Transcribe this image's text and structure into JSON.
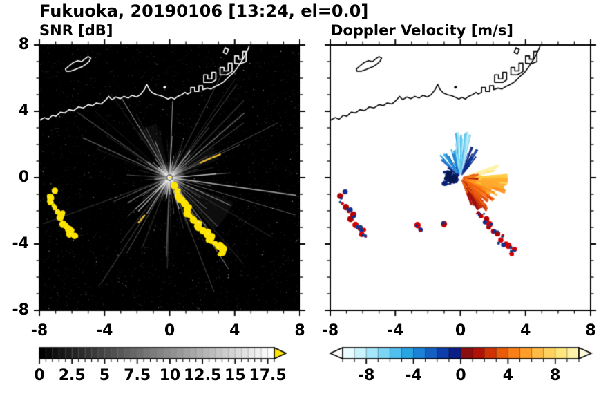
{
  "chart_data": {
    "type": "heatmap",
    "subtype": "dual-panel weather radar PPI",
    "title": "Fukuoka, 20190106 [13:24, el=0.0]",
    "xlim": [
      -8,
      8
    ],
    "ylim": [
      -8,
      8
    ],
    "major_ticks": [
      -8,
      -4,
      0,
      4,
      8
    ],
    "minor_tick_step": 1,
    "x_tick_labels": [
      "-8",
      "-4",
      "0",
      "4",
      "8"
    ],
    "y_tick_labels": [
      "8",
      "4",
      "0",
      "-4",
      "-8"
    ],
    "radar_center": [
      0,
      0
    ],
    "panels": [
      {
        "name": "SNR [dB]",
        "background": "#000000",
        "coastline_color": "#ffffff",
        "colorbar": {
          "range": [
            0,
            18
          ],
          "segments": 36,
          "scale": "grayscale",
          "tick_values": [
            0,
            2.5,
            5,
            7.5,
            10,
            12.5,
            15,
            17.5
          ],
          "tick_labels": [
            "0",
            "2.5",
            "5",
            "7.5",
            "10",
            "12.5",
            "15",
            "17.5"
          ],
          "minor_tick_step": 0.5,
          "over_arrow_color": "#ffe600"
        },
        "texture": {
          "seed": 1106,
          "noise_count": 3200,
          "streak_count": 125,
          "echo_color": "#ffe400",
          "dash_color": "#e6b830",
          "dashes": [
            [
              [
                1.9,
                0.9
              ],
              [
                2.55,
                1.18
              ]
            ],
            [
              [
                2.65,
                1.22
              ],
              [
                3.1,
                1.4
              ]
            ],
            [
              [
                -1.9,
                -2.7
              ],
              [
                -1.55,
                -2.28
              ]
            ]
          ],
          "haze_wedges": [
            {
              "az": -35,
              "halfw": 14,
              "r": 4.2
            },
            {
              "az": -62,
              "halfw": 9,
              "r": 3.0
            },
            {
              "az": 115,
              "halfw": 11,
              "r": 3.4
            },
            {
              "az": 28,
              "halfw": 8,
              "r": 3.2
            }
          ]
        }
      },
      {
        "name": "Doppler Velocity [m/s]",
        "background": "#ffffff",
        "coastline_color": "#000000",
        "colorbar": {
          "range": [
            -10,
            10
          ],
          "tick_values": [
            -8,
            -4,
            0,
            4,
            8
          ],
          "tick_labels": [
            "-8",
            "-4",
            "0",
            "4",
            "8"
          ],
          "minor_tick_step": 1,
          "segment_colors": [
            "#e8fbff",
            "#c9f2fd",
            "#a5e6fa",
            "#7dd5f5",
            "#52c0ee",
            "#2aa5e4",
            "#1b82d6",
            "#145fc2",
            "#0f3dab",
            "#0a1e85",
            "#8c0f0f",
            "#b01205",
            "#cf3305",
            "#e85c0a",
            "#f97f16",
            "#ff9f2a",
            "#ffbb45",
            "#ffd25f",
            "#ffe57e",
            "#fff2a8"
          ],
          "under_arrow_color": "#ffffff",
          "over_arrow_color": "#fffbdc"
        },
        "fans": {
          "seed": 777,
          "approaching": {
            "azimuth_deg": [
              52,
              215
            ],
            "max_range": 2.9,
            "palette": [
              "#bfeef8",
              "#8fdcf4",
              "#54c0ec",
              "#23a2e2",
              "#1b7fd4",
              "#1257bf",
              "#0d379f",
              "#0a2178",
              "#071750"
            ]
          },
          "receding": {
            "azimuth_deg": [
              -68,
              18
            ],
            "max_range": 2.9,
            "palette": [
              "#fff1a8",
              "#ffe066",
              "#ffc93c",
              "#ffab2e",
              "#ff8c1a",
              "#f5690e",
              "#e04a08",
              "#c22a04",
              "#a01010"
            ]
          }
        },
        "speck_colors": [
          "#d40000",
          "#b00000",
          "#0d2f96",
          "#123c8c"
        ],
        "extra_specks": [
          [
            -2.6,
            -2.9
          ],
          [
            -2.45,
            -3.15
          ],
          [
            -1.05,
            -2.85
          ]
        ]
      }
    ],
    "echo_chains": [
      [
        [
          -7.15,
          -0.85
        ],
        [
          -7.35,
          -1.15
        ],
        [
          -7.3,
          -1.5
        ],
        [
          -7.1,
          -1.8
        ],
        [
          -6.85,
          -2.05
        ],
        [
          -6.6,
          -2.2
        ],
        [
          -6.75,
          -2.45
        ]
      ],
      [
        [
          -6.45,
          -2.85
        ],
        [
          -6.2,
          -3.05
        ],
        [
          -5.95,
          -3.2
        ],
        [
          -6.1,
          -3.45
        ],
        [
          -5.8,
          -3.5
        ]
      ],
      [
        [
          0.35,
          -0.55
        ],
        [
          0.55,
          -0.8
        ],
        [
          0.45,
          -1.1
        ],
        [
          0.7,
          -1.35
        ],
        [
          0.95,
          -1.6
        ],
        [
          1.15,
          -1.85
        ],
        [
          1.05,
          -2.1
        ],
        [
          1.3,
          -2.3
        ],
        [
          1.55,
          -2.55
        ],
        [
          1.8,
          -2.75
        ],
        [
          1.7,
          -3.0
        ],
        [
          2.0,
          -3.2
        ],
        [
          2.3,
          -3.35
        ],
        [
          2.55,
          -3.55
        ],
        [
          2.45,
          -3.8
        ],
        [
          2.75,
          -3.95
        ],
        [
          3.0,
          -4.15
        ],
        [
          3.3,
          -4.3
        ],
        [
          3.15,
          -4.55
        ]
      ]
    ],
    "coastline": {
      "mainland": [
        [
          -8.0,
          3.45
        ],
        [
          -7.7,
          3.62
        ],
        [
          -7.45,
          3.52
        ],
        [
          -7.2,
          3.76
        ],
        [
          -6.98,
          3.7
        ],
        [
          -6.7,
          3.95
        ],
        [
          -6.45,
          3.9
        ],
        [
          -6.18,
          4.1
        ],
        [
          -5.9,
          4.04
        ],
        [
          -5.6,
          4.26
        ],
        [
          -5.3,
          4.2
        ],
        [
          -5.0,
          4.4
        ],
        [
          -4.74,
          4.34
        ],
        [
          -4.5,
          4.5
        ],
        [
          -4.2,
          4.44
        ],
        [
          -3.95,
          4.66
        ],
        [
          -3.74,
          4.9
        ],
        [
          -3.54,
          4.7
        ],
        [
          -3.3,
          4.86
        ],
        [
          -3.04,
          4.76
        ],
        [
          -2.8,
          4.9
        ],
        [
          -2.54,
          4.8
        ],
        [
          -2.3,
          4.96
        ],
        [
          -2.04,
          4.86
        ],
        [
          -1.8,
          5.0
        ],
        [
          -1.56,
          5.3
        ],
        [
          -1.4,
          5.62
        ],
        [
          -1.24,
          5.3
        ],
        [
          -1.04,
          5.1
        ],
        [
          -0.8,
          5.0
        ],
        [
          -0.54,
          4.94
        ],
        [
          -0.3,
          4.84
        ],
        [
          -0.1,
          4.74
        ],
        [
          0.1,
          4.84
        ],
        [
          0.3,
          4.74
        ],
        [
          0.5,
          4.9
        ],
        [
          0.74,
          5.0
        ],
        [
          0.95,
          5.14
        ],
        [
          1.1,
          5.04
        ],
        [
          1.3,
          5.14
        ],
        [
          1.3,
          5.44
        ],
        [
          1.54,
          5.44
        ],
        [
          1.54,
          5.2
        ],
        [
          1.8,
          5.2
        ],
        [
          1.8,
          5.54
        ],
        [
          2.04,
          5.54
        ],
        [
          2.04,
          5.3
        ],
        [
          2.3,
          5.4
        ],
        [
          2.54,
          5.34
        ],
        [
          2.8,
          5.5
        ],
        [
          3.04,
          5.6
        ],
        [
          3.3,
          5.76
        ],
        [
          3.5,
          5.94
        ],
        [
          3.7,
          6.14
        ],
        [
          3.94,
          6.34
        ],
        [
          4.14,
          6.6
        ],
        [
          4.34,
          6.9
        ],
        [
          4.54,
          7.2
        ],
        [
          4.7,
          7.5
        ],
        [
          4.84,
          7.8
        ],
        [
          4.95,
          8.1
        ]
      ],
      "island": [
        [
          -6.4,
          6.55
        ],
        [
          -6.15,
          6.76
        ],
        [
          -5.9,
          6.95
        ],
        [
          -5.64,
          7.05
        ],
        [
          -5.4,
          7.0
        ],
        [
          -5.2,
          7.16
        ],
        [
          -5.0,
          7.3
        ],
        [
          -4.84,
          7.2
        ],
        [
          -4.95,
          7.0
        ],
        [
          -5.14,
          6.84
        ],
        [
          -5.35,
          6.7
        ],
        [
          -5.6,
          6.6
        ],
        [
          -5.85,
          6.5
        ],
        [
          -6.1,
          6.42
        ],
        [
          -6.35,
          6.42
        ]
      ],
      "docks": [
        [
          [
            2.1,
            5.74
          ],
          [
            2.1,
            6.2
          ],
          [
            2.34,
            6.2
          ],
          [
            2.34,
            5.95
          ],
          [
            2.6,
            5.95
          ],
          [
            2.6,
            6.35
          ],
          [
            2.84,
            6.35
          ],
          [
            2.84,
            5.9
          ],
          [
            2.6,
            5.74
          ]
        ],
        [
          [
            3.1,
            6.2
          ],
          [
            3.1,
            6.64
          ],
          [
            3.34,
            6.64
          ],
          [
            3.34,
            6.44
          ],
          [
            3.6,
            6.44
          ],
          [
            3.6,
            6.9
          ],
          [
            3.84,
            6.9
          ],
          [
            3.84,
            6.4
          ],
          [
            3.5,
            6.2
          ]
        ],
        [
          [
            4.0,
            6.9
          ],
          [
            4.0,
            7.34
          ],
          [
            4.24,
            7.34
          ],
          [
            4.24,
            7.14
          ],
          [
            4.5,
            7.14
          ],
          [
            4.5,
            7.6
          ],
          [
            4.7,
            7.6
          ],
          [
            4.7,
            7.0
          ],
          [
            4.35,
            6.86
          ]
        ],
        [
          [
            3.3,
            7.55
          ],
          [
            3.42,
            7.84
          ],
          [
            3.62,
            7.72
          ],
          [
            3.5,
            7.46
          ]
        ]
      ],
      "islet": [
        -0.3,
        5.45
      ]
    }
  }
}
